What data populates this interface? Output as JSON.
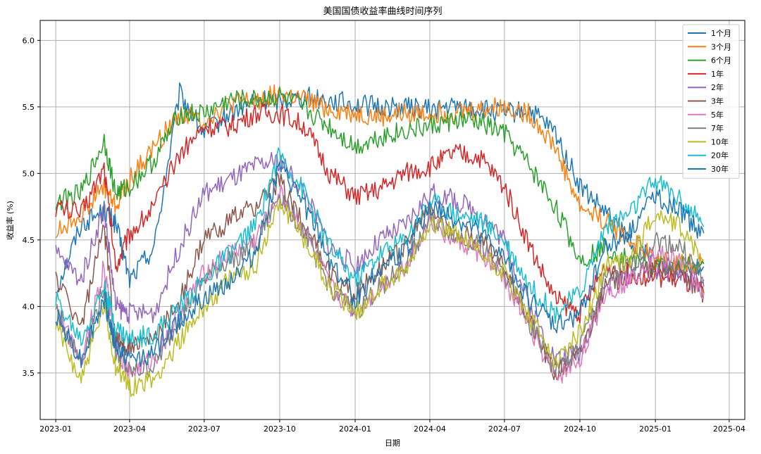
{
  "chart_data": {
    "type": "line",
    "title": "美国国债收益率曲线时间序列",
    "xlabel": "日期",
    "ylabel": "收益率 (%)",
    "xlim": [
      "2022-12-13",
      "2025-04-20"
    ],
    "ylim": [
      3.15,
      6.15
    ],
    "grid": true,
    "legend_position": "top-right",
    "x_ticks": [
      "2023-01",
      "2023-04",
      "2023-07",
      "2023-10",
      "2024-01",
      "2024-04",
      "2024-07",
      "2024-10",
      "2025-01",
      "2025-04"
    ],
    "y_ticks": [
      3.5,
      4.0,
      4.5,
      5.0,
      5.5,
      6.0
    ],
    "x": [
      "2023-01-01",
      "2023-02-01",
      "2023-03-01",
      "2023-03-15",
      "2023-04-01",
      "2023-05-01",
      "2023-06-01",
      "2023-07-01",
      "2023-08-01",
      "2023-09-01",
      "2023-10-01",
      "2023-11-01",
      "2023-12-01",
      "2024-01-01",
      "2024-02-01",
      "2024-03-01",
      "2024-04-01",
      "2024-05-01",
      "2024-06-01",
      "2024-07-01",
      "2024-08-01",
      "2024-09-01",
      "2024-10-01",
      "2024-11-01",
      "2024-12-01",
      "2025-01-01",
      "2025-02-01",
      "2025-03-01"
    ],
    "series": [
      {
        "name": "1个月",
        "color": "#1f77b4",
        "values": [
          4.12,
          4.62,
          4.72,
          4.62,
          4.2,
          4.45,
          5.6,
          5.3,
          5.45,
          5.55,
          5.55,
          5.58,
          5.55,
          5.52,
          5.5,
          5.5,
          5.48,
          5.5,
          5.48,
          5.45,
          5.47,
          5.3,
          4.9,
          4.7,
          4.5,
          4.35,
          4.32,
          4.3
        ]
      },
      {
        "name": "3个月",
        "color": "#ff7f0e",
        "values": [
          4.55,
          4.7,
          4.9,
          4.75,
          4.95,
          5.2,
          5.45,
          5.4,
          5.52,
          5.55,
          5.6,
          5.55,
          5.48,
          5.45,
          5.42,
          5.45,
          5.45,
          5.46,
          5.48,
          5.5,
          5.45,
          5.2,
          4.75,
          4.65,
          4.5,
          4.35,
          4.32,
          4.33
        ]
      },
      {
        "name": "6个月",
        "color": "#2ca02c",
        "values": [
          4.78,
          4.85,
          5.25,
          4.85,
          4.9,
          5.1,
          5.45,
          5.45,
          5.55,
          5.55,
          5.58,
          5.48,
          5.35,
          5.2,
          5.28,
          5.32,
          5.35,
          5.4,
          5.38,
          5.3,
          5.05,
          4.75,
          4.35,
          4.45,
          4.35,
          4.3,
          4.3,
          4.32
        ]
      },
      {
        "name": "1年",
        "color": "#d62728",
        "values": [
          4.75,
          4.7,
          5.05,
          4.3,
          4.55,
          4.75,
          5.15,
          5.35,
          5.35,
          5.45,
          5.45,
          5.35,
          5.0,
          4.82,
          4.88,
          5.0,
          5.05,
          5.15,
          5.12,
          4.9,
          4.45,
          4.05,
          3.95,
          4.3,
          4.25,
          4.22,
          4.2,
          4.1
        ]
      },
      {
        "name": "2年",
        "color": "#9467bd",
        "values": [
          4.4,
          4.2,
          4.75,
          4.0,
          3.95,
          3.95,
          4.45,
          4.85,
          4.95,
          5.05,
          5.1,
          4.85,
          4.45,
          4.3,
          4.5,
          4.6,
          4.85,
          4.8,
          4.7,
          4.5,
          4.0,
          3.6,
          3.65,
          4.15,
          4.25,
          4.28,
          4.25,
          4.15
        ]
      },
      {
        "name": "3年",
        "color": "#8c564b",
        "values": [
          4.22,
          3.85,
          4.6,
          3.75,
          3.7,
          3.75,
          4.05,
          4.5,
          4.65,
          4.75,
          4.95,
          4.6,
          4.25,
          4.1,
          4.3,
          4.45,
          4.75,
          4.55,
          4.5,
          4.3,
          3.9,
          3.5,
          3.65,
          4.15,
          4.25,
          4.3,
          4.25,
          4.1
        ]
      },
      {
        "name": "5年",
        "color": "#e377c2",
        "values": [
          4.0,
          3.6,
          4.3,
          3.7,
          3.5,
          3.6,
          3.95,
          4.25,
          4.4,
          4.5,
          4.85,
          4.55,
          4.15,
          3.95,
          4.15,
          4.3,
          4.65,
          4.5,
          4.4,
          4.2,
          3.85,
          3.45,
          3.6,
          4.1,
          4.2,
          4.4,
          4.35,
          4.1
        ]
      },
      {
        "name": "7年",
        "color": "#7f7f7f",
        "values": [
          3.98,
          3.58,
          4.15,
          3.65,
          3.5,
          3.55,
          3.9,
          4.2,
          4.35,
          4.45,
          4.85,
          4.55,
          4.15,
          3.95,
          4.15,
          4.3,
          4.65,
          4.55,
          4.45,
          4.25,
          3.88,
          3.5,
          3.7,
          4.2,
          4.3,
          4.5,
          4.45,
          4.2
        ]
      },
      {
        "name": "10年",
        "color": "#bcbd22",
        "values": [
          3.85,
          3.45,
          4.0,
          3.55,
          3.4,
          3.45,
          3.75,
          4.0,
          4.2,
          4.3,
          4.8,
          4.5,
          4.15,
          3.95,
          4.15,
          4.25,
          4.65,
          4.55,
          4.4,
          4.25,
          3.9,
          3.6,
          3.8,
          4.3,
          4.35,
          4.7,
          4.6,
          4.35
        ]
      },
      {
        "name": "20年",
        "color": "#17becf",
        "values": [
          4.05,
          3.75,
          4.15,
          3.85,
          3.75,
          3.8,
          4.0,
          4.2,
          4.4,
          4.6,
          5.15,
          4.85,
          4.45,
          4.2,
          4.4,
          4.5,
          4.8,
          4.7,
          4.65,
          4.5,
          4.15,
          3.95,
          4.1,
          4.6,
          4.7,
          4.95,
          4.8,
          4.6
        ]
      },
      {
        "name": "30年",
        "color": "#1f77b4",
        "values": [
          3.95,
          3.6,
          4.05,
          3.7,
          3.6,
          3.65,
          3.9,
          4.05,
          4.2,
          4.4,
          5.05,
          4.75,
          4.35,
          4.05,
          4.3,
          4.4,
          4.75,
          4.65,
          4.55,
          4.35,
          4.05,
          3.85,
          3.95,
          4.45,
          4.55,
          4.85,
          4.7,
          4.55
        ]
      }
    ]
  }
}
